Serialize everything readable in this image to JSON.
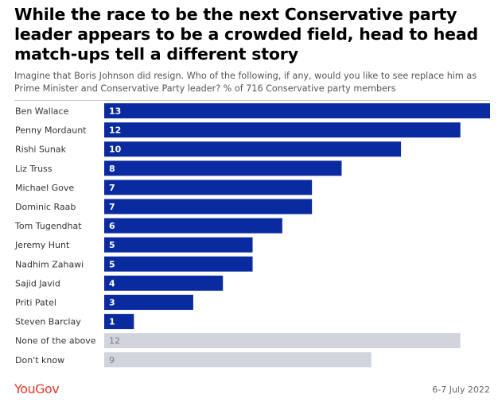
{
  "title": "While the race to be the next Conservative party leader appears to be a crowded field, head to head match-ups tell a different story",
  "subtitle": "Imagine that Boris Johnson did resign. Who of the following, if any, would you like to see replace him as Prime Minister and Conservative Party leader? % of 716 Conservative party members",
  "footer": {
    "brand": "YouGov",
    "date": "6-7 July 2022"
  },
  "colors": {
    "primary_bar": "#0a2a9f",
    "secondary_bar": "#d2d4dd",
    "primary_label": "#ffffff",
    "secondary_label": "#7a7d87"
  },
  "chart_data": {
    "type": "bar",
    "orientation": "horizontal",
    "categories": [
      "Ben Wallace",
      "Penny Mordaunt",
      "Rishi Sunak",
      "Liz Truss",
      "Michael Gove",
      "Dominic Raab",
      "Tom Tugendhat",
      "Jeremy Hunt",
      "Nadhim Zahawi",
      "Sajid Javid",
      "Priti Patel",
      "Steven Barclay",
      "None of the above",
      "Don't know"
    ],
    "values": [
      13,
      12,
      10,
      8,
      7,
      7,
      6,
      5,
      5,
      4,
      3,
      1,
      12,
      9
    ],
    "highlight": [
      "primary",
      "primary",
      "primary",
      "primary",
      "primary",
      "primary",
      "primary",
      "primary",
      "primary",
      "primary",
      "primary",
      "primary",
      "secondary",
      "secondary"
    ],
    "xlim": [
      0,
      13
    ],
    "grid": false,
    "legend": "none"
  }
}
